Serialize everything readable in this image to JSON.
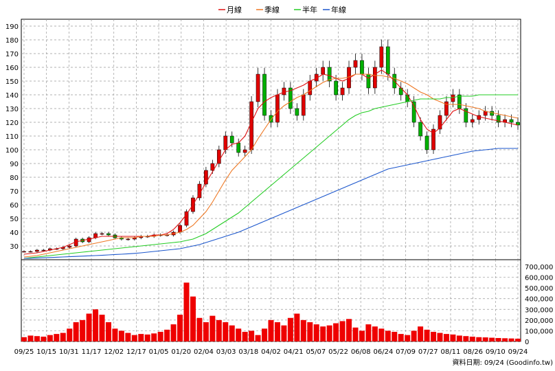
{
  "chart_data": [
    {
      "type": "candlestick",
      "legend": [
        {
          "name": "月線",
          "color": "#e01010"
        },
        {
          "name": "季線",
          "color": "#ee7722"
        },
        {
          "name": "半年",
          "color": "#22cc22"
        },
        {
          "name": "年線",
          "color": "#1a55cc"
        }
      ],
      "ylim": [
        20,
        195
      ],
      "yticks": [
        "30",
        "40",
        "50",
        "60",
        "70",
        "80",
        "90",
        "100",
        "110",
        "120",
        "130",
        "140",
        "150",
        "160",
        "170",
        "180",
        "190"
      ],
      "xticks": [
        "09/25",
        "10/15",
        "10/31",
        "11/17",
        "12/02",
        "12/17",
        "01/05",
        "01/20",
        "02/04",
        "03/03",
        "03/18",
        "04/02",
        "04/21",
        "05/07",
        "05/22",
        "06/08",
        "06/24",
        "07/09",
        "07/27",
        "08/11",
        "08/26",
        "09/10",
        "09/24"
      ],
      "price_close": [
        26,
        26,
        27,
        27,
        28,
        28,
        29,
        30,
        35,
        33,
        36,
        39,
        39,
        38,
        36,
        35,
        35,
        36,
        37,
        37,
        38,
        38,
        38,
        40,
        45,
        55,
        65,
        75,
        85,
        90,
        100,
        110,
        105,
        98,
        100,
        135,
        155,
        125,
        120,
        140,
        145,
        130,
        125,
        140,
        150,
        155,
        160,
        150,
        140,
        145,
        160,
        165,
        155,
        145,
        160,
        175,
        155,
        145,
        140,
        135,
        120,
        110,
        100,
        115,
        125,
        135,
        140,
        130,
        120,
        122,
        125,
        128,
        125,
        120,
        122,
        120,
        118
      ],
      "ma_month": [
        24,
        24.5,
        25,
        26,
        27,
        28,
        29,
        31,
        33,
        34,
        35,
        36,
        37,
        37,
        37,
        37,
        37,
        37,
        37,
        37,
        38,
        38,
        39,
        42,
        47,
        53,
        60,
        68,
        76,
        84,
        92,
        100,
        104,
        105,
        110,
        120,
        130,
        135,
        138,
        140,
        142,
        143,
        145,
        147,
        150,
        152,
        155,
        154,
        152,
        150,
        152,
        155,
        155,
        152,
        155,
        158,
        155,
        150,
        145,
        140,
        132,
        122,
        115,
        112,
        116,
        122,
        128,
        130,
        128,
        126,
        124,
        123,
        122,
        121,
        120,
        119,
        118
      ],
      "ma_quarter": [
        22,
        22.5,
        23,
        24,
        25,
        26,
        27,
        28,
        29,
        30,
        31,
        32,
        33,
        34,
        35,
        36,
        36,
        36,
        37,
        37,
        37,
        38,
        38,
        39,
        40,
        42,
        45,
        50,
        55,
        62,
        70,
        78,
        85,
        90,
        95,
        100,
        108,
        115,
        122,
        128,
        132,
        135,
        138,
        140,
        143,
        146,
        149,
        151,
        152,
        152,
        153,
        155,
        155,
        155,
        154,
        154,
        153,
        152,
        150,
        148,
        145,
        142,
        140,
        137,
        135,
        133,
        133,
        133,
        132,
        131,
        130,
        128,
        127,
        126,
        125,
        124,
        123
      ],
      "ma_half": [
        21,
        21.5,
        22,
        22.5,
        23,
        23.5,
        24,
        24.5,
        25,
        25.5,
        26,
        26.5,
        27,
        27.5,
        28,
        28.5,
        29,
        29.5,
        30,
        30.5,
        31,
        31.5,
        32,
        32.5,
        33,
        34,
        35,
        37,
        39,
        42,
        45,
        48,
        51,
        54,
        58,
        62,
        66,
        70,
        74,
        78,
        82,
        86,
        90,
        94,
        98,
        102,
        106,
        110,
        114,
        118,
        122,
        125,
        127,
        128,
        130,
        131,
        132,
        133,
        134,
        135,
        136,
        137,
        137,
        137,
        137,
        138,
        138,
        139,
        139,
        139,
        140,
        140,
        140,
        140,
        140,
        140,
        140
      ],
      "ma_year": [
        21,
        21,
        21.2,
        21.4,
        21.6,
        21.8,
        22,
        22.2,
        22.4,
        22.6,
        22.8,
        23,
        23.2,
        23.5,
        23.8,
        24,
        24.3,
        24.6,
        25,
        25.5,
        26,
        26.5,
        27,
        27.5,
        28,
        29,
        30,
        31,
        32.5,
        34,
        35.5,
        37,
        38.5,
        40,
        42,
        44,
        46,
        48,
        50,
        52,
        54,
        56,
        58,
        60,
        62,
        64,
        66,
        68,
        70,
        72,
        74,
        76,
        78,
        80,
        82,
        84,
        86,
        87,
        88,
        89,
        90,
        91,
        92,
        93,
        94,
        95,
        96,
        97,
        98,
        99,
        99.5,
        100,
        100.5,
        101,
        101,
        101,
        101
      ],
      "volume": [
        40000,
        55000,
        50000,
        45000,
        60000,
        70000,
        80000,
        120000,
        180000,
        200000,
        260000,
        300000,
        250000,
        180000,
        120000,
        100000,
        80000,
        60000,
        70000,
        65000,
        75000,
        90000,
        110000,
        160000,
        250000,
        550000,
        420000,
        220000,
        180000,
        240000,
        200000,
        180000,
        150000,
        120000,
        90000,
        100000,
        60000,
        120000,
        200000,
        180000,
        150000,
        220000,
        260000,
        200000,
        180000,
        160000,
        140000,
        150000,
        170000,
        190000,
        210000,
        130000,
        100000,
        160000,
        140000,
        120000,
        100000,
        90000,
        70000,
        60000,
        100000,
        140000,
        110000,
        90000,
        80000,
        70000,
        65000,
        55000,
        50000,
        45000,
        40000,
        38000,
        35000,
        32000,
        30000,
        28000,
        26000
      ],
      "vol_ylim": [
        0,
        700000
      ],
      "vol_ticks": [
        "0",
        "100,000",
        "200,000",
        "300,000",
        "400,000",
        "500,000",
        "600,000",
        "700,000"
      ]
    }
  ],
  "footer": {
    "source": "資料日期: 09/24  (Goodinfo.tw)"
  }
}
